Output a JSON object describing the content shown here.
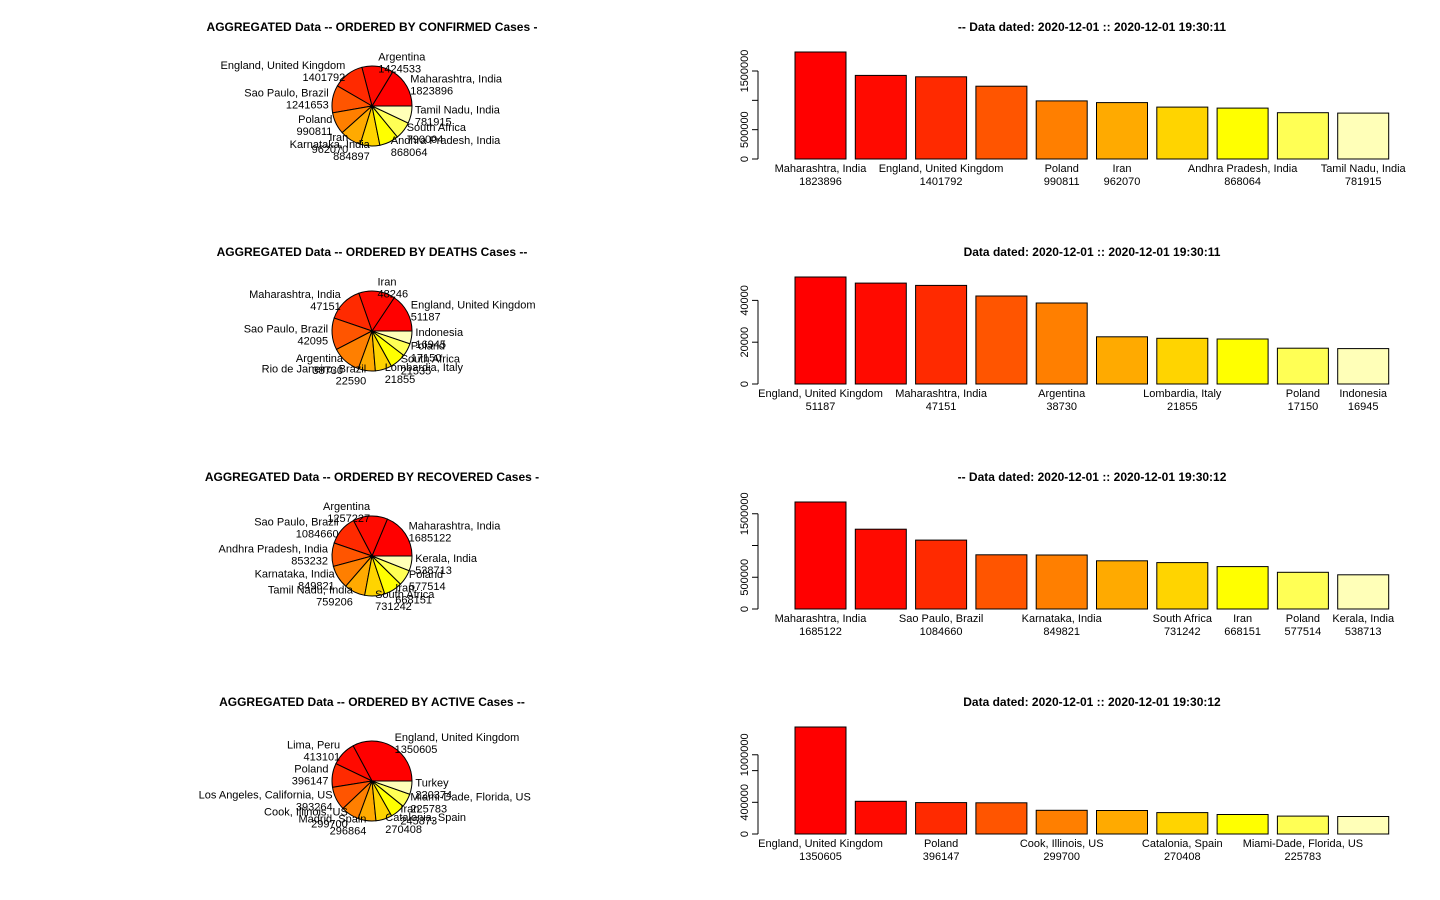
{
  "colors": [
    "#ff0000",
    "#ff0a00",
    "#ff2a00",
    "#ff5500",
    "#ff7f00",
    "#ffaa00",
    "#ffd400",
    "#ffff00",
    "#ffff55",
    "#ffffb8"
  ],
  "chart_data": [
    {
      "type": "pie",
      "title": "AGGREGATED Data  -- ORDERED BY  CONFIRMED Cases  -",
      "labels": [
        "Maharashtra, India",
        "Argentina",
        "England, United Kingdom",
        "Sao Paulo, Brazil",
        "Poland",
        "Iran",
        "Karnataka, India",
        "Andhra Pradesh, India",
        "South Africa",
        "Tamil Nadu, India"
      ],
      "values": [
        1823896,
        1424533,
        1401792,
        1241653,
        990811,
        962070,
        884897,
        868064,
        790004,
        781915
      ],
      "value_labels": [
        "1823896",
        "1424533",
        "1401792",
        "1241653",
        "990811",
        "962070",
        "884897",
        "868064",
        "790004",
        "781915"
      ]
    },
    {
      "type": "bar",
      "title": "-- Data dated:  2020-12-01  ::  2020-12-01 19:30:11",
      "categories": [
        "Maharashtra, India",
        "Argentina",
        "England, United Kingdom",
        "Sao Paulo, Brazil",
        "Poland",
        "Iran",
        "Karnataka, India",
        "Andhra Pradesh, India",
        "South Africa",
        "Tamil Nadu, India"
      ],
      "values": [
        1823896,
        1424533,
        1401792,
        1241653,
        990811,
        962070,
        884897,
        868064,
        790004,
        781915
      ],
      "shown_names": [
        "Maharashtra, India",
        "",
        "England, United Kingdom",
        "",
        "Poland",
        "Iran",
        "",
        "Andhra Pradesh, India",
        "",
        "Tamil Nadu, India"
      ],
      "shown_values": [
        "1823896",
        "",
        "1401792",
        "",
        "990811",
        "962070",
        "",
        "868064",
        "",
        "781915"
      ],
      "ylim": [
        0,
        1823896
      ],
      "yticks": [
        0,
        500000,
        1500000
      ],
      "ytick_labels": [
        "0",
        "500000",
        "1500000"
      ]
    },
    {
      "type": "pie",
      "title": "AGGREGATED Data  -- ORDERED BY  DEATHS Cases  --",
      "labels": [
        "England, United Kingdom",
        "Iran",
        "Maharashtra, India",
        "Sao Paulo, Brazil",
        "Argentina",
        "Rio de Janeiro, Brazil",
        "Lombardia, Italy",
        "South Africa",
        "Poland",
        "Indonesia"
      ],
      "values": [
        51187,
        48246,
        47151,
        42095,
        38730,
        22590,
        21855,
        21535,
        17150,
        16945
      ],
      "value_labels": [
        "51187",
        "48246",
        "47151",
        "42095",
        "38730",
        "22590",
        "21855",
        "21535",
        "17150",
        "16945"
      ]
    },
    {
      "type": "bar",
      "title": "Data dated:  2020-12-01  ::  2020-12-01 19:30:11",
      "categories": [
        "England, United Kingdom",
        "Iran",
        "Maharashtra, India",
        "Sao Paulo, Brazil",
        "Argentina",
        "Rio de Janeiro, Brazil",
        "Lombardia, Italy",
        "South Africa",
        "Poland",
        "Indonesia"
      ],
      "values": [
        51187,
        48246,
        47151,
        42095,
        38730,
        22590,
        21855,
        21535,
        17150,
        16945
      ],
      "shown_names": [
        "England, United Kingdom",
        "",
        "Maharashtra, India",
        "",
        "Argentina",
        "",
        "Lombardia, Italy",
        "",
        "Poland",
        "Indonesia"
      ],
      "shown_values": [
        "51187",
        "",
        "47151",
        "",
        "38730",
        "",
        "21855",
        "",
        "17150",
        "16945"
      ],
      "ylim": [
        0,
        51187
      ],
      "yticks": [
        0,
        20000,
        40000
      ],
      "ytick_labels": [
        "0",
        "20000",
        "40000"
      ]
    },
    {
      "type": "pie",
      "title": "AGGREGATED Data  -- ORDERED BY  RECOVERED Cases  -",
      "labels": [
        "Maharashtra, India",
        "Argentina",
        "Sao Paulo, Brazil",
        "Andhra Pradesh, India",
        "Karnataka, India",
        "Tamil Nadu, India",
        "South Africa",
        "Iran",
        "Poland",
        "Kerala, India"
      ],
      "values": [
        1685122,
        1257227,
        1084660,
        853232,
        849821,
        759206,
        731242,
        668151,
        577514,
        538713
      ],
      "value_labels": [
        "1685122",
        "1257227",
        "1084660",
        "853232",
        "849821",
        "759206",
        "731242",
        "668151",
        "577514",
        "538713"
      ]
    },
    {
      "type": "bar",
      "title": "-- Data dated:  2020-12-01  ::  2020-12-01 19:30:12",
      "categories": [
        "Maharashtra, India",
        "Argentina",
        "Sao Paulo, Brazil",
        "Andhra Pradesh, India",
        "Karnataka, India",
        "Tamil Nadu, India",
        "South Africa",
        "Iran",
        "Poland",
        "Kerala, India"
      ],
      "values": [
        1685122,
        1257227,
        1084660,
        853232,
        849821,
        759206,
        731242,
        668151,
        577514,
        538713
      ],
      "shown_names": [
        "Maharashtra, India",
        "",
        "Sao Paulo, Brazil",
        "",
        "Karnataka, India",
        "",
        "South Africa",
        "Iran",
        "Poland",
        "Kerala, India"
      ],
      "shown_values": [
        "1685122",
        "",
        "1084660",
        "",
        "849821",
        "",
        "731242",
        "668151",
        "577514",
        "538713"
      ],
      "ylim": [
        0,
        1685122
      ],
      "yticks": [
        0,
        500000,
        1500000
      ],
      "ytick_labels": [
        "0",
        "500000",
        "1500000"
      ]
    },
    {
      "type": "pie",
      "title": "AGGREGATED Data  -- ORDERED BY  ACTIVE Cases  --",
      "labels": [
        "England, United Kingdom",
        "Lima, Peru",
        "Poland",
        "Los Angeles, California, US",
        "Cook, Illinois, US",
        "Madrid, Spain",
        "Catalonia, Spain",
        "Iran",
        "Miami-Dade, Florida, US",
        "Turkey"
      ],
      "values": [
        1350605,
        413101,
        396147,
        393264,
        299700,
        296864,
        270408,
        245873,
        225783,
        220374
      ],
      "value_labels": [
        "1350605",
        "413101",
        "396147",
        "393264",
        "299700",
        "296864",
        "270408",
        "245873",
        "225783",
        "220374"
      ]
    },
    {
      "type": "bar",
      "title": "Data dated:  2020-12-01  ::  2020-12-01 19:30:12",
      "categories": [
        "England, United Kingdom",
        "Lima, Peru",
        "Poland",
        "Los Angeles, California, US",
        "Cook, Illinois, US",
        "Madrid, Spain",
        "Catalonia, Spain",
        "Iran",
        "Miami-Dade, Florida, US",
        "Turkey"
      ],
      "values": [
        1350605,
        413101,
        396147,
        393264,
        299700,
        296864,
        270408,
        245873,
        225783,
        220374
      ],
      "shown_names": [
        "England, United Kingdom",
        "",
        "Poland",
        "",
        "Cook, Illinois, US",
        "",
        "Catalonia, Spain",
        "",
        "Miami-Dade, Florida, US",
        ""
      ],
      "shown_values": [
        "1350605",
        "",
        "396147",
        "",
        "299700",
        "",
        "270408",
        "",
        "225783",
        ""
      ],
      "ylim": [
        0,
        1350605
      ],
      "yticks": [
        0,
        400000,
        1000000
      ],
      "ytick_labels": [
        "0",
        "400000",
        "1000000"
      ]
    }
  ]
}
